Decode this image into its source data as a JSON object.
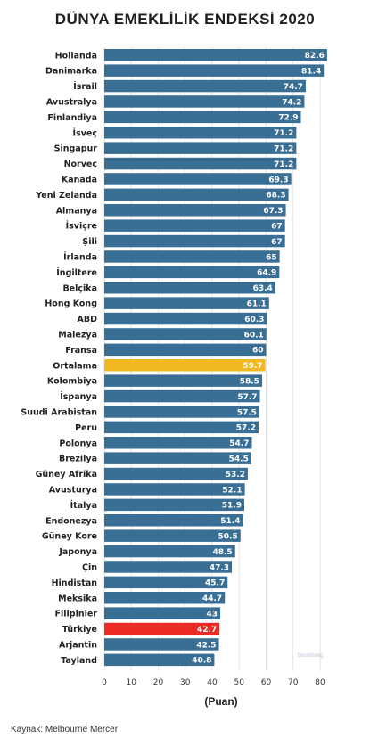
{
  "chart_data": {
    "type": "bar",
    "orientation": "horizontal",
    "title": "DÜNYA EMEKLİLİK ENDEKSİ 2020",
    "xlabel": "(Puan)",
    "source": "Kaynak: Melbourne Mercer",
    "watermark": "bloomberg",
    "xlim": [
      0,
      85
    ],
    "xticks": [
      0,
      10,
      20,
      30,
      40,
      50,
      60,
      70,
      80
    ],
    "colors": {
      "default": "#3a6f95",
      "average": "#f2b824",
      "highlight": "#ee2a24"
    },
    "categories": [
      "Hollanda",
      "Danimarka",
      "İsrail",
      "Avustralya",
      "Finlandiya",
      "İsveç",
      "Singapur",
      "Norveç",
      "Kanada",
      "Yeni Zelanda",
      "Almanya",
      "İsviçre",
      "Şili",
      "İrlanda",
      "İngiltere",
      "Belçika",
      "Hong Kong",
      "ABD",
      "Malezya",
      "Fransa",
      "Ortalama",
      "Kolombiya",
      "İspanya",
      "Suudi Arabistan",
      "Peru",
      "Polonya",
      "Brezilya",
      "Güney Afrika",
      "Avusturya",
      "İtalya",
      "Endonezya",
      "Güney Kore",
      "Japonya",
      "Çin",
      "Hindistan",
      "Meksika",
      "Filipinler",
      "Türkiye",
      "Arjantin",
      "Tayland"
    ],
    "values": [
      82.6,
      81.4,
      74.7,
      74.2,
      72.9,
      71.2,
      71.2,
      71.2,
      69.3,
      68.3,
      67.3,
      67,
      67,
      65,
      64.9,
      63.4,
      61.1,
      60.3,
      60.1,
      60,
      59.7,
      58.5,
      57.7,
      57.5,
      57.2,
      54.7,
      54.5,
      53.2,
      52.1,
      51.9,
      51.4,
      50.5,
      48.5,
      47.3,
      45.7,
      44.7,
      43,
      42.7,
      42.5,
      40.8
    ],
    "average_category": "Ortalama",
    "highlight_category": "Türkiye"
  }
}
